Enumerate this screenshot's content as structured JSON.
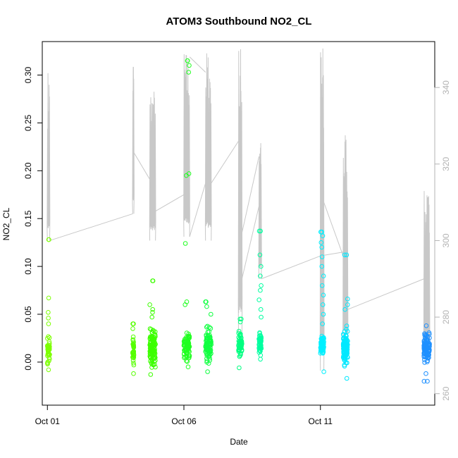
{
  "chart_data": {
    "type": "scatter",
    "title": "ATOM3 Southbound NO2_CL",
    "xlabel": "Date",
    "ylabel": "NO2_CL",
    "x_ticks": [
      {
        "date": "2017-10-01",
        "label": "Oct 01"
      },
      {
        "date": "2017-10-06",
        "label": "Oct 06"
      },
      {
        "date": "2017-10-11",
        "label": "Oct 11"
      }
    ],
    "xlim": [
      "2017-09-30T19:30",
      "2017-10-15T04:30"
    ],
    "ylim": [
      -0.045,
      0.335
    ],
    "y_ticks": [
      0.0,
      0.05,
      0.1,
      0.15,
      0.2,
      0.25,
      0.3
    ],
    "y_tick_labels": [
      "0.00",
      "0.05",
      "0.10",
      "0.15",
      "0.20",
      "0.25",
      "0.30"
    ],
    "y2lim": [
      257,
      352
    ],
    "y2_ticks": [
      260,
      280,
      300,
      320,
      340
    ],
    "y2_tick_labels": [
      "260",
      "280",
      "300",
      "320",
      "340"
    ],
    "grid": false,
    "legend": "none",
    "colors": {
      "line": "#c8c8c8",
      "axis": "#000000",
      "right_axis": "#b3b3b3",
      "point_gradient": [
        "#80ff00",
        "#30ff00",
        "#00ff50",
        "#00ffc0",
        "#00f0ff",
        "#00b0ff",
        "#1080ff"
      ]
    },
    "series": [
      {
        "marker": "open-circle",
        "axis": "left",
        "clusters": [
          {
            "day": "2017-10-01",
            "t_start": "2017-10-01T00:00",
            "t_end": "2017-10-01T02:00",
            "min": -0.008,
            "max": 0.128,
            "core_min": -0.005,
            "core_max": 0.03,
            "n": 40,
            "color": "#7cff00",
            "outliers": [
              0.128,
              0.067,
              0.052,
              0.046,
              0.04
            ]
          },
          {
            "day": "2017-10-04",
            "t_start": "2017-10-04T03:00",
            "t_end": "2017-10-04T04:00",
            "min": -0.012,
            "max": 0.04,
            "core_min": -0.008,
            "core_max": 0.03,
            "n": 35,
            "color": "#55ff00",
            "outliers": [
              0.04,
              0.035
            ]
          },
          {
            "day": "2017-10-04",
            "t_start": "2017-10-04T18:00",
            "t_end": "2017-10-04T23:00",
            "min": -0.013,
            "max": 0.085,
            "core_min": -0.01,
            "core_max": 0.04,
            "n": 110,
            "color": "#3cff00",
            "outliers": [
              0.085,
              0.06,
              0.055,
              0.052,
              0.047
            ]
          },
          {
            "day": "2017-10-06",
            "t_start": "2017-10-06T00:00",
            "t_end": "2017-10-06T05:00",
            "min": -0.005,
            "max": 0.315,
            "core_min": -0.002,
            "core_max": 0.035,
            "n": 80,
            "color": "#20ff20",
            "outliers": [
              0.315,
              0.31,
              0.303,
              0.197,
              0.195,
              0.124,
              0.063,
              0.06
            ]
          },
          {
            "day": "2017-10-06",
            "t_start": "2017-10-06T19:00",
            "t_end": "2017-10-07T00:00",
            "min": -0.01,
            "max": 0.063,
            "core_min": -0.005,
            "core_max": 0.04,
            "n": 90,
            "color": "#10ff40",
            "outliers": [
              0.063,
              0.058,
              0.05
            ]
          },
          {
            "day": "2017-10-08",
            "t_start": "2017-10-08T00:00",
            "t_end": "2017-10-08T03:00",
            "min": -0.006,
            "max": 0.045,
            "core_min": 0.0,
            "core_max": 0.035,
            "n": 70,
            "color": "#00ff80",
            "outliers": [
              0.045,
              0.042
            ]
          },
          {
            "day": "2017-10-08",
            "t_start": "2017-10-08T18:00",
            "t_end": "2017-10-08T20:00",
            "min": 0.003,
            "max": 0.137,
            "core_min": 0.005,
            "core_max": 0.035,
            "n": 60,
            "color": "#00ffa0",
            "outliers": [
              0.137,
              0.112,
              0.1,
              0.09,
              0.08,
              0.075,
              0.065,
              0.055,
              0.047
            ]
          },
          {
            "day": "2017-10-11",
            "t_start": "2017-10-11T00:00",
            "t_end": "2017-10-11T03:00",
            "min": -0.01,
            "max": 0.136,
            "core_min": 0.005,
            "core_max": 0.03,
            "n": 70,
            "color": "#00f0ff",
            "outliers": [
              0.136,
              0.132,
              0.125,
              0.12,
              0.11,
              0.1,
              0.09,
              0.08,
              0.07,
              0.06,
              0.05,
              0.04
            ]
          },
          {
            "day": "2017-10-11",
            "t_start": "2017-10-11T20:00",
            "t_end": "2017-10-12T00:00",
            "min": -0.017,
            "max": 0.112,
            "core_min": -0.01,
            "core_max": 0.04,
            "n": 120,
            "color": "#00e8ff",
            "outliers": [
              0.112,
              0.066,
              0.06,
              0.055
            ]
          },
          {
            "day": "2017-10-14",
            "t_start": "2017-10-14T19:00",
            "t_end": "2017-10-15T00:00",
            "min": -0.02,
            "max": 0.038,
            "core_min": -0.005,
            "core_max": 0.035,
            "n": 110,
            "color": "#1e90ff",
            "outliers": [
              -0.02,
              -0.012
            ]
          }
        ]
      },
      {
        "marker": "line",
        "axis": "right",
        "color": "#c8c8c8",
        "segments": [
          {
            "t_start": "2017-10-01T00:00",
            "t_end": "2017-10-01T02:00",
            "base": 300,
            "peak": 345,
            "spikes": 6
          },
          {
            "t_start": "2017-10-04T03:00",
            "t_end": "2017-10-04T04:00",
            "base": 307,
            "peak": 349,
            "spikes": 4
          },
          {
            "t_start": "2017-10-04T18:00",
            "t_end": "2017-10-04T23:00",
            "base": 300,
            "peak": 340,
            "spikes": 14
          },
          {
            "t_start": "2017-10-06T00:00",
            "t_end": "2017-10-06T05:00",
            "base": 301,
            "peak": 350,
            "spikes": 12
          },
          {
            "t_start": "2017-10-06T19:00",
            "t_end": "2017-10-07T00:00",
            "base": 300,
            "peak": 350,
            "spikes": 12
          },
          {
            "t_start": "2017-10-08T00:00",
            "t_end": "2017-10-08T03:00",
            "base": 276,
            "peak": 352,
            "spikes": 9
          },
          {
            "t_start": "2017-10-08T18:00",
            "t_end": "2017-10-08T20:00",
            "base": 290,
            "peak": 331,
            "spikes": 7
          },
          {
            "t_start": "2017-10-11T00:00",
            "t_end": "2017-10-11T03:00",
            "base": 266,
            "peak": 352,
            "spikes": 12
          },
          {
            "t_start": "2017-10-11T20:00",
            "t_end": "2017-10-12T00:00",
            "base": 272,
            "peak": 330,
            "spikes": 12
          },
          {
            "t_start": "2017-10-14T19:00",
            "t_end": "2017-10-15T00:00",
            "base": 270,
            "peak": 313,
            "spikes": 14
          }
        ],
        "connectors": [
          {
            "from": [
              "2017-10-01T02:00",
              300
            ],
            "to": [
              "2017-10-04T03:00",
              307
            ]
          },
          {
            "from": [
              "2017-10-04T04:00",
              323
            ],
            "to": [
              "2017-10-04T18:00",
              316
            ]
          },
          {
            "from": [
              "2017-10-04T19:00",
              307
            ],
            "to": [
              "2017-10-06T00:00",
              312
            ]
          },
          {
            "from": [
              "2017-10-06T05:00",
              348
            ],
            "to": [
              "2017-10-06T19:00",
              344
            ]
          },
          {
            "from": [
              "2017-10-06T05:00",
              301
            ],
            "to": [
              "2017-10-06T19:00",
              315
            ]
          },
          {
            "from": [
              "2017-10-07T00:00",
              315
            ],
            "to": [
              "2017-10-08T00:00",
              326
            ]
          },
          {
            "from": [
              "2017-10-08T00:00",
              298
            ],
            "to": [
              "2017-10-08T18:00",
              322
            ]
          },
          {
            "from": [
              "2017-10-08T03:00",
              290
            ],
            "to": [
              "2017-10-08T18:00",
              309
            ]
          },
          {
            "from": [
              "2017-10-08T20:00",
              290
            ],
            "to": [
              "2017-10-11T00:00",
              296
            ]
          },
          {
            "from": [
              "2017-10-11T00:00",
              296
            ],
            "to": [
              "2017-10-11T20:00",
              297
            ]
          },
          {
            "from": [
              "2017-10-11T03:00",
              310
            ],
            "to": [
              "2017-10-11T20:00",
              296
            ]
          },
          {
            "from": [
              "2017-10-12T00:00",
              282
            ],
            "to": [
              "2017-10-14T19:00",
              290
            ]
          }
        ]
      }
    ]
  }
}
